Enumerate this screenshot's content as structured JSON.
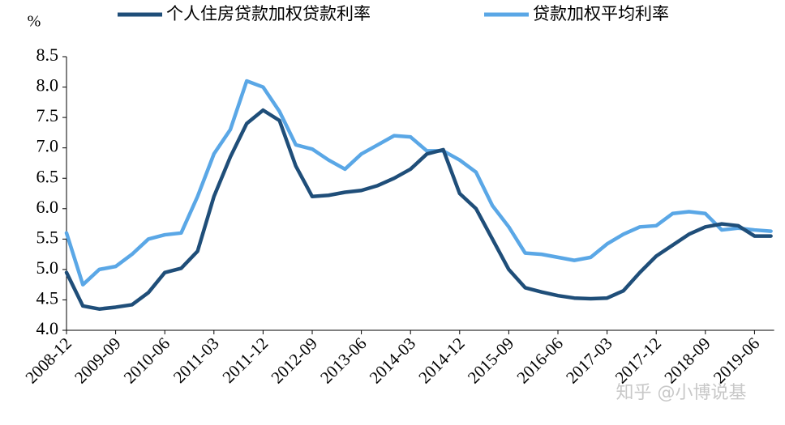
{
  "chart_data": {
    "type": "line",
    "y_label": "%",
    "watermark": "知乎 @小博说基",
    "categories": [
      "2008-12",
      null,
      null,
      "2009-09",
      null,
      null,
      "2010-06",
      null,
      null,
      "2011-03",
      null,
      null,
      "2011-12",
      null,
      null,
      "2012-09",
      null,
      null,
      "2013-06",
      null,
      null,
      "2014-03",
      null,
      null,
      "2014-12",
      null,
      null,
      "2015-09",
      null,
      null,
      "2016-06",
      null,
      null,
      "2017-03",
      null,
      null,
      "2017-12",
      null,
      null,
      "2018-09",
      null,
      null,
      "2019-06",
      null
    ],
    "series": [
      {
        "name": "个人住房贷款加权贷款利率",
        "color": "#1f4e79",
        "values": [
          4.95,
          4.4,
          4.35,
          4.38,
          4.42,
          4.62,
          4.95,
          5.02,
          5.3,
          6.2,
          6.85,
          7.4,
          7.62,
          7.45,
          6.7,
          6.2,
          6.22,
          6.27,
          6.3,
          6.38,
          6.5,
          6.65,
          6.9,
          6.97,
          6.25,
          6.0,
          5.5,
          5.0,
          4.7,
          4.63,
          4.57,
          4.53,
          4.52,
          4.53,
          4.65,
          4.95,
          5.22,
          5.4,
          5.58,
          5.7,
          5.75,
          5.72,
          5.55,
          5.55
        ]
      },
      {
        "name": "贷款加权平均利率",
        "color": "#5aa7e6",
        "values": [
          5.6,
          4.75,
          5.0,
          5.05,
          5.25,
          5.5,
          5.57,
          5.6,
          6.2,
          6.9,
          7.3,
          8.1,
          8.0,
          7.6,
          7.05,
          6.98,
          6.8,
          6.65,
          6.9,
          7.05,
          7.2,
          7.18,
          6.95,
          6.95,
          6.8,
          6.6,
          6.05,
          5.7,
          5.27,
          5.25,
          5.2,
          5.15,
          5.2,
          5.42,
          5.58,
          5.7,
          5.72,
          5.92,
          5.95,
          5.92,
          5.65,
          5.68,
          5.65,
          5.63
        ]
      }
    ],
    "ylim": [
      4.0,
      8.5
    ],
    "yticks": [
      {
        "value": 4,
        "label": "4.0"
      },
      {
        "value": 4.5,
        "label": "4.5"
      },
      {
        "value": 5,
        "label": "5.0"
      },
      {
        "value": 5.5,
        "label": "5.5"
      },
      {
        "value": 6,
        "label": "6.0"
      },
      {
        "value": 6.5,
        "label": "6.5"
      },
      {
        "value": 7,
        "label": "7.0"
      },
      {
        "value": 7.5,
        "label": "7.5"
      },
      {
        "value": 8,
        "label": "8.0"
      },
      {
        "value": 8.5,
        "label": "8.5"
      }
    ],
    "grid": false,
    "legend": "top"
  }
}
